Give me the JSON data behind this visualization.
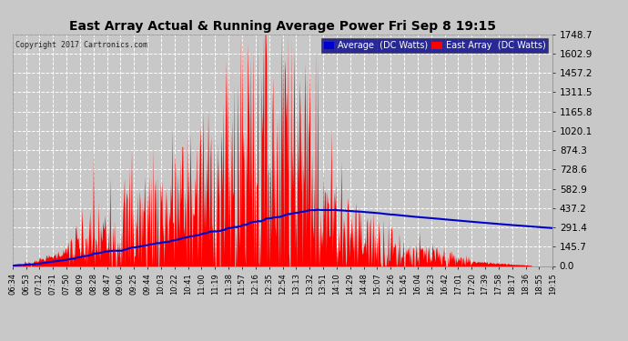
{
  "title": "East Array Actual & Running Average Power Fri Sep 8 19:15",
  "copyright": "Copyright 2017 Cartronics.com",
  "legend_avg": "Average  (DC Watts)",
  "legend_east": "East Array  (DC Watts)",
  "yticks": [
    0.0,
    145.7,
    291.4,
    437.2,
    582.9,
    728.6,
    874.3,
    1020.1,
    1165.8,
    1311.5,
    1457.2,
    1602.9,
    1748.7
  ],
  "ylim": [
    0,
    1748.7
  ],
  "background_color": "#c8c8c8",
  "plot_bg_color": "#c8c8c8",
  "grid_color": "#ffffff",
  "fill_color": "#ff0000",
  "line_color": "#0000cc",
  "title_color": "#000000",
  "xtick_labels": [
    "06:34",
    "06:53",
    "07:12",
    "07:31",
    "07:50",
    "08:09",
    "08:28",
    "08:47",
    "09:06",
    "09:25",
    "09:44",
    "10:03",
    "10:22",
    "10:41",
    "11:00",
    "11:19",
    "11:38",
    "11:57",
    "12:16",
    "12:35",
    "12:54",
    "13:13",
    "13:32",
    "13:51",
    "14:10",
    "14:29",
    "14:48",
    "15:07",
    "15:26",
    "15:45",
    "16:04",
    "16:23",
    "16:42",
    "17:01",
    "17:20",
    "17:39",
    "17:58",
    "18:17",
    "18:36",
    "18:55",
    "19:15"
  ]
}
